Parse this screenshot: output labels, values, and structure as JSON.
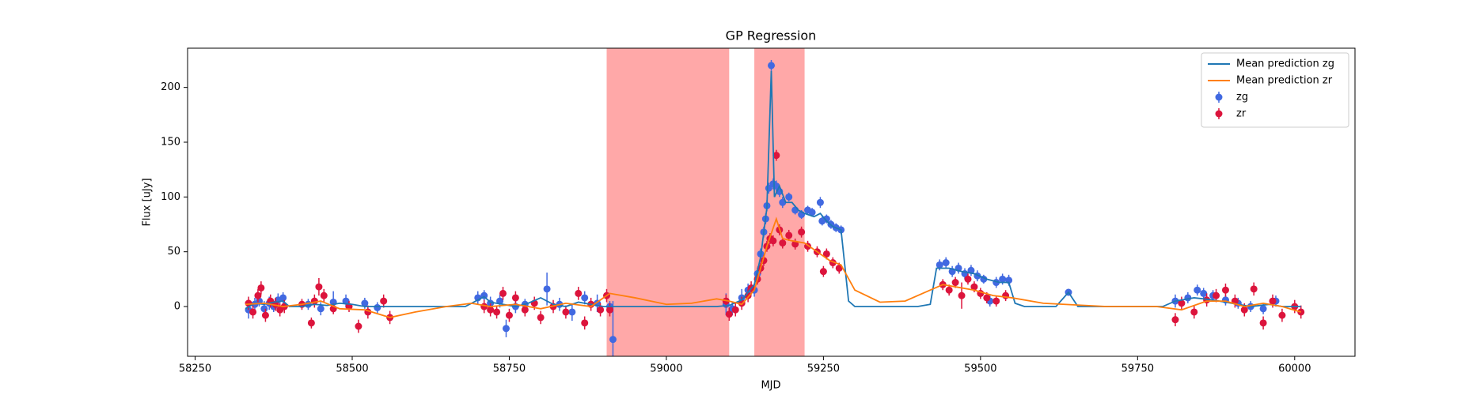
{
  "chart_data": {
    "type": "line",
    "title": "GP Regression",
    "x_label": "MJD",
    "y_label": "Flux [uJy]",
    "xlim": [
      58238,
      60096
    ],
    "ylim": [
      -45.4,
      235.8
    ],
    "xticks": [
      58250,
      58500,
      58750,
      59000,
      59250,
      59500,
      59750,
      60000
    ],
    "yticks": [
      0,
      50,
      100,
      150,
      200
    ],
    "spans": [
      [
        58905,
        59100
      ],
      [
        59140,
        59220
      ]
    ],
    "span_color": "#ff9999",
    "legend": "upper right",
    "series": [
      {
        "name": "Mean prediction zg",
        "color": "#1f77b4",
        "kind": "line",
        "x": [
          58330,
          58345,
          58360,
          58375,
          58390,
          58400,
          58420,
          58440,
          58460,
          58480,
          58500,
          58520,
          58600,
          58680,
          58700,
          58710,
          58720,
          58740,
          58760,
          58780,
          58800,
          58820,
          58840,
          58860,
          58880,
          58900,
          58920,
          59000,
          59080,
          59100,
          59120,
          59140,
          59150,
          59160,
          59167,
          59172,
          59180,
          59190,
          59200,
          59210,
          59220,
          59235,
          59245,
          59255,
          59265,
          59278,
          59290,
          59300,
          59400,
          59420,
          59430,
          59450,
          59470,
          59490,
          59510,
          59530,
          59545,
          59555,
          59570,
          59620,
          59640,
          59655,
          59790,
          59810,
          59840,
          59870,
          59900,
          59930,
          59960,
          59980,
          60010
        ],
        "values": [
          -2,
          3,
          2,
          4,
          5,
          0,
          0,
          2,
          1,
          3,
          2,
          0,
          0,
          0,
          6,
          9,
          4,
          2,
          0,
          3,
          8,
          2,
          0,
          4,
          2,
          0,
          0,
          0,
          0,
          1,
          6,
          20,
          45,
          90,
          215,
          100,
          110,
          95,
          95,
          88,
          85,
          82,
          85,
          78,
          73,
          70,
          5,
          0,
          0,
          2,
          35,
          35,
          32,
          30,
          25,
          22,
          22,
          3,
          0,
          0,
          13,
          0,
          0,
          5,
          8,
          6,
          3,
          0,
          2,
          0,
          0
        ]
      },
      {
        "name": "Mean prediction zr",
        "color": "#ff7f0e",
        "kind": "line",
        "x": [
          58330,
          58360,
          58390,
          58420,
          58450,
          58480,
          58520,
          58560,
          58600,
          58650,
          58690,
          58720,
          58760,
          58800,
          58840,
          58880,
          58910,
          58950,
          59000,
          59040,
          59080,
          59100,
          59120,
          59140,
          59160,
          59175,
          59185,
          59200,
          59220,
          59240,
          59260,
          59278,
          59300,
          59340,
          59380,
          59420,
          59440,
          59460,
          59490,
          59520,
          59550,
          59600,
          59700,
          59780,
          59820,
          59860,
          59890,
          59920,
          59950,
          59980,
          60010
        ],
        "values": [
          2,
          3,
          0,
          2,
          5,
          -2,
          -3,
          -10,
          -5,
          0,
          3,
          0,
          2,
          -2,
          3,
          0,
          12,
          8,
          2,
          3,
          7,
          5,
          2,
          15,
          55,
          80,
          62,
          60,
          58,
          50,
          42,
          38,
          15,
          4,
          5,
          15,
          20,
          18,
          15,
          10,
          8,
          3,
          0,
          0,
          -3,
          5,
          5,
          0,
          3,
          0,
          -5
        ]
      },
      {
        "name": "zg",
        "color": "#4169e1",
        "kind": "errorbar",
        "x": [
          58335,
          58345,
          58352,
          58360,
          58368,
          58375,
          58382,
          58390,
          58430,
          58450,
          58470,
          58490,
          58520,
          58540,
          58700,
          58710,
          58720,
          58735,
          58745,
          58760,
          58775,
          58810,
          58830,
          58850,
          58870,
          58890,
          58910,
          58915,
          59095,
          59105,
          59120,
          59130,
          59140,
          59145,
          59150,
          59155,
          59158,
          59160,
          59163,
          59167,
          59170,
          59175,
          59180,
          59185,
          59195,
          59205,
          59215,
          59225,
          59232,
          59245,
          59248,
          59255,
          59262,
          59270,
          59278,
          59435,
          59445,
          59455,
          59465,
          59475,
          59485,
          59495,
          59505,
          59515,
          59525,
          59535,
          59545,
          59640,
          59810,
          59830,
          59845,
          59855,
          59870,
          59890,
          59910,
          59930,
          59950,
          59970
        ],
        "values": [
          -3,
          2,
          5,
          -2,
          3,
          0,
          6,
          8,
          2,
          -2,
          4,
          5,
          3,
          -1,
          8,
          10,
          3,
          5,
          -20,
          0,
          2,
          16,
          2,
          -5,
          8,
          3,
          0,
          -30,
          2,
          -2,
          8,
          15,
          15,
          30,
          48,
          68,
          80,
          92,
          108,
          220,
          112,
          110,
          105,
          95,
          100,
          88,
          84,
          88,
          86,
          95,
          78,
          80,
          75,
          72,
          70,
          38,
          40,
          32,
          35,
          30,
          33,
          28,
          25,
          5,
          22,
          25,
          24,
          13,
          5,
          8,
          15,
          12,
          10,
          6,
          3,
          0,
          -2,
          5
        ],
        "errors": [
          8,
          6,
          5,
          7,
          6,
          5,
          6,
          5,
          5,
          6,
          10,
          6,
          5,
          5,
          6,
          5,
          6,
          6,
          8,
          6,
          5,
          15,
          6,
          8,
          6,
          8,
          5,
          35,
          10,
          6,
          8,
          6,
          6,
          5,
          5,
          5,
          5,
          5,
          5,
          5,
          5,
          5,
          5,
          5,
          4,
          4,
          4,
          4,
          4,
          5,
          4,
          4,
          4,
          4,
          4,
          5,
          5,
          5,
          5,
          5,
          5,
          5,
          4,
          5,
          5,
          5,
          5,
          3,
          6,
          5,
          5,
          5,
          5,
          5,
          5,
          5,
          5,
          5
        ]
      },
      {
        "name": "zr",
        "color": "#dc143c",
        "kind": "errorbar",
        "x": [
          58335,
          58342,
          58350,
          58355,
          58362,
          58370,
          58378,
          58385,
          58392,
          58420,
          58435,
          58440,
          58447,
          58455,
          58470,
          58495,
          58510,
          58525,
          58550,
          58560,
          58710,
          58720,
          58730,
          58740,
          58750,
          58760,
          58775,
          58790,
          58800,
          58820,
          58840,
          58860,
          58870,
          58880,
          58895,
          58905,
          58910,
          59095,
          59100,
          59110,
          59120,
          59130,
          59135,
          59145,
          59150,
          59155,
          59160,
          59165,
          59170,
          59175,
          59180,
          59185,
          59195,
          59205,
          59215,
          59225,
          59240,
          59250,
          59255,
          59265,
          59275,
          59440,
          59450,
          59460,
          59470,
          59480,
          59490,
          59500,
          59510,
          59525,
          59540,
          59810,
          59820,
          59840,
          59860,
          59875,
          59890,
          59905,
          59920,
          59935,
          59950,
          59965,
          59980,
          60000,
          60010
        ],
        "values": [
          3,
          -5,
          10,
          17,
          -8,
          5,
          2,
          -3,
          0,
          2,
          -15,
          5,
          18,
          10,
          -2,
          0,
          -18,
          -5,
          5,
          -10,
          0,
          -3,
          -5,
          12,
          -8,
          8,
          -3,
          3,
          -10,
          0,
          -5,
          12,
          -15,
          2,
          -3,
          10,
          -3,
          5,
          -7,
          -3,
          3,
          10,
          17,
          25,
          35,
          42,
          55,
          62,
          60,
          138,
          70,
          58,
          65,
          57,
          68,
          55,
          50,
          32,
          48,
          40,
          35,
          20,
          15,
          22,
          10,
          25,
          18,
          12,
          8,
          5,
          10,
          -12,
          3,
          -5,
          6,
          10,
          15,
          5,
          -3,
          16,
          -15,
          5,
          -8,
          0,
          -5
        ],
        "errors": [
          6,
          6,
          6,
          6,
          6,
          6,
          6,
          6,
          6,
          5,
          5,
          6,
          8,
          6,
          5,
          5,
          6,
          6,
          6,
          6,
          6,
          6,
          6,
          6,
          6,
          6,
          6,
          6,
          6,
          6,
          6,
          6,
          6,
          6,
          6,
          6,
          6,
          6,
          6,
          6,
          6,
          6,
          6,
          5,
          5,
          5,
          5,
          5,
          5,
          5,
          5,
          5,
          5,
          5,
          5,
          5,
          5,
          5,
          5,
          5,
          5,
          5,
          5,
          5,
          12,
          5,
          5,
          5,
          5,
          5,
          5,
          6,
          6,
          6,
          6,
          6,
          6,
          6,
          6,
          6,
          6,
          6,
          6,
          6,
          6
        ]
      }
    ]
  }
}
